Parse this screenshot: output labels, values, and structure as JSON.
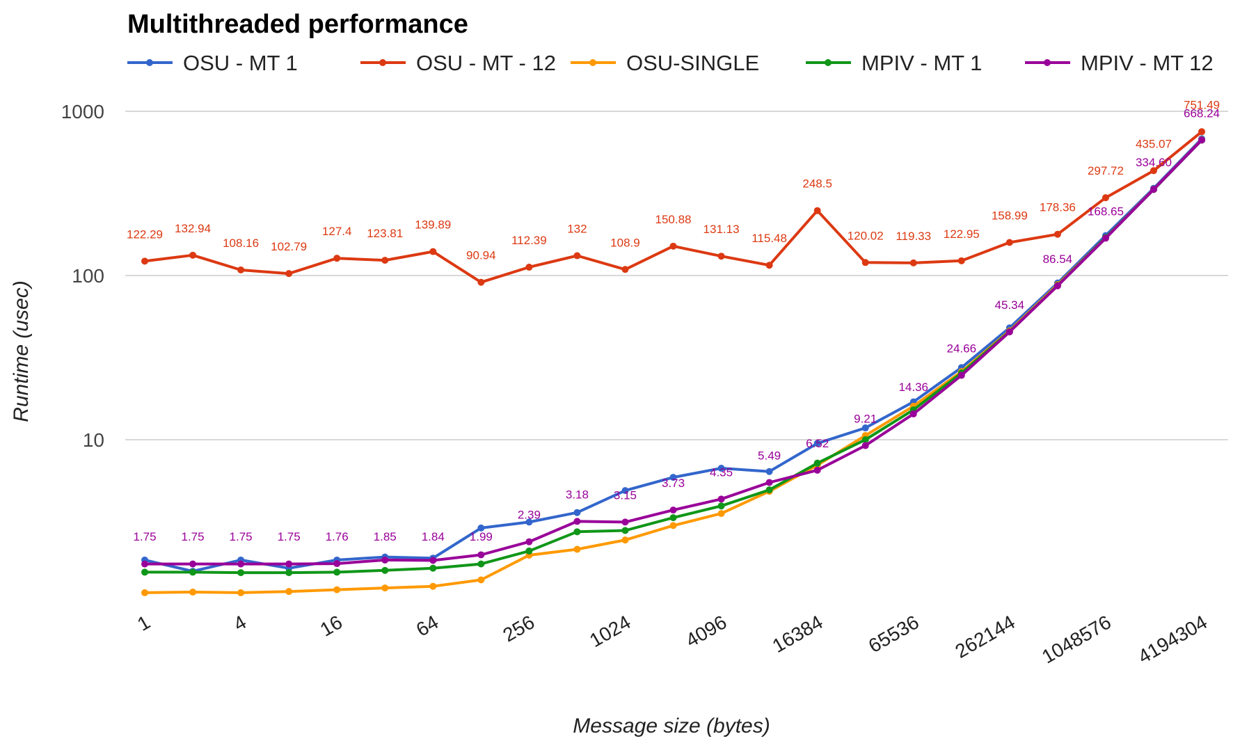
{
  "chart_data": {
    "type": "line",
    "title": "Multithreaded performance",
    "xlabel": "Message size (bytes)",
    "ylabel": "Runtime (usec)",
    "yscale": "log",
    "ylim": [
      1,
      1000
    ],
    "yticks": [
      "10",
      "100",
      "1000"
    ],
    "ytick_values": [
      10,
      100,
      1000
    ],
    "grid": true,
    "legend_position": "top",
    "x": [
      1,
      2,
      4,
      8,
      16,
      32,
      64,
      128,
      256,
      512,
      1024,
      2048,
      4096,
      8192,
      16384,
      32768,
      65536,
      131072,
      262144,
      524288,
      1048576,
      2097152,
      4194304
    ],
    "xtick_labels": [
      "1",
      "4",
      "16",
      "64",
      "256",
      "1024",
      "4096",
      "16384",
      "65536",
      "262144",
      "1048576",
      "4194304"
    ],
    "xtick_values": [
      1,
      4,
      16,
      64,
      256,
      1024,
      4096,
      16384,
      65536,
      262144,
      1048576,
      4194304
    ],
    "series": [
      {
        "name": "OSU - MT 1",
        "color": "#3366cc",
        "values": [
          1.85,
          1.58,
          1.85,
          1.65,
          1.85,
          1.93,
          1.9,
          2.9,
          3.15,
          3.6,
          4.9,
          5.9,
          6.7,
          6.4,
          9.5,
          11.8,
          17.0,
          27.5,
          48.0,
          90.0,
          175.0,
          340.0,
          680.0
        ],
        "labels": []
      },
      {
        "name": "OSU - MT - 12",
        "color": "#dc3912",
        "values": [
          122.29,
          132.94,
          108.16,
          102.79,
          127.4,
          123.81,
          139.89,
          90.94,
          112.39,
          132,
          108.9,
          150.88,
          131.13,
          115.48,
          248.5,
          120.02,
          119.33,
          122.95,
          158.99,
          178.36,
          297.72,
          435.07,
          751.49
        ],
        "labels": [
          "122.29",
          "132.94",
          "108.16",
          "102.79",
          "127.4",
          "123.81",
          "139.89",
          "90.94",
          "112.39",
          "132",
          "108.9",
          "150.88",
          "131.13",
          "115.48",
          "248.5",
          "120.02",
          "119.33",
          "122.95",
          "158.99",
          "178.36",
          "297.72",
          "435.07",
          "751.49"
        ]
      },
      {
        "name": "OSU-SINGLE",
        "color": "#ff9900",
        "values": [
          1.17,
          1.18,
          1.17,
          1.19,
          1.22,
          1.25,
          1.28,
          1.4,
          1.98,
          2.15,
          2.45,
          3.0,
          3.55,
          4.85,
          7.0,
          10.6,
          16.0,
          26.0,
          46.0,
          88.0,
          170.0,
          335.0,
          670.0
        ],
        "labels": []
      },
      {
        "name": "MPIV - MT 1",
        "color": "#109618",
        "values": [
          1.56,
          1.56,
          1.55,
          1.55,
          1.56,
          1.6,
          1.65,
          1.75,
          2.1,
          2.75,
          2.8,
          3.35,
          3.95,
          4.95,
          7.2,
          10.0,
          15.2,
          25.5,
          45.5,
          87.0,
          170.0,
          334.0,
          668.0
        ],
        "labels": []
      },
      {
        "name": "MPIV - MT 12",
        "color": "#990099",
        "values": [
          1.75,
          1.75,
          1.75,
          1.75,
          1.76,
          1.85,
          1.84,
          1.99,
          2.39,
          3.18,
          3.15,
          3.73,
          4.35,
          5.49,
          6.52,
          9.21,
          14.36,
          24.66,
          45.34,
          86.54,
          168.65,
          334.6,
          668.24
        ],
        "labels": [
          "1.75",
          "1.75",
          "1.75",
          "1.75",
          "1.76",
          "1.85",
          "1.84",
          "1.99",
          "2.39",
          "3.18",
          "3.15",
          "3.73",
          "4.35",
          "5.49",
          "6.52",
          "9.21",
          "14.36",
          "24.66",
          "45.34",
          "86.54",
          "168.65",
          "334.60",
          "668.24"
        ]
      }
    ]
  }
}
